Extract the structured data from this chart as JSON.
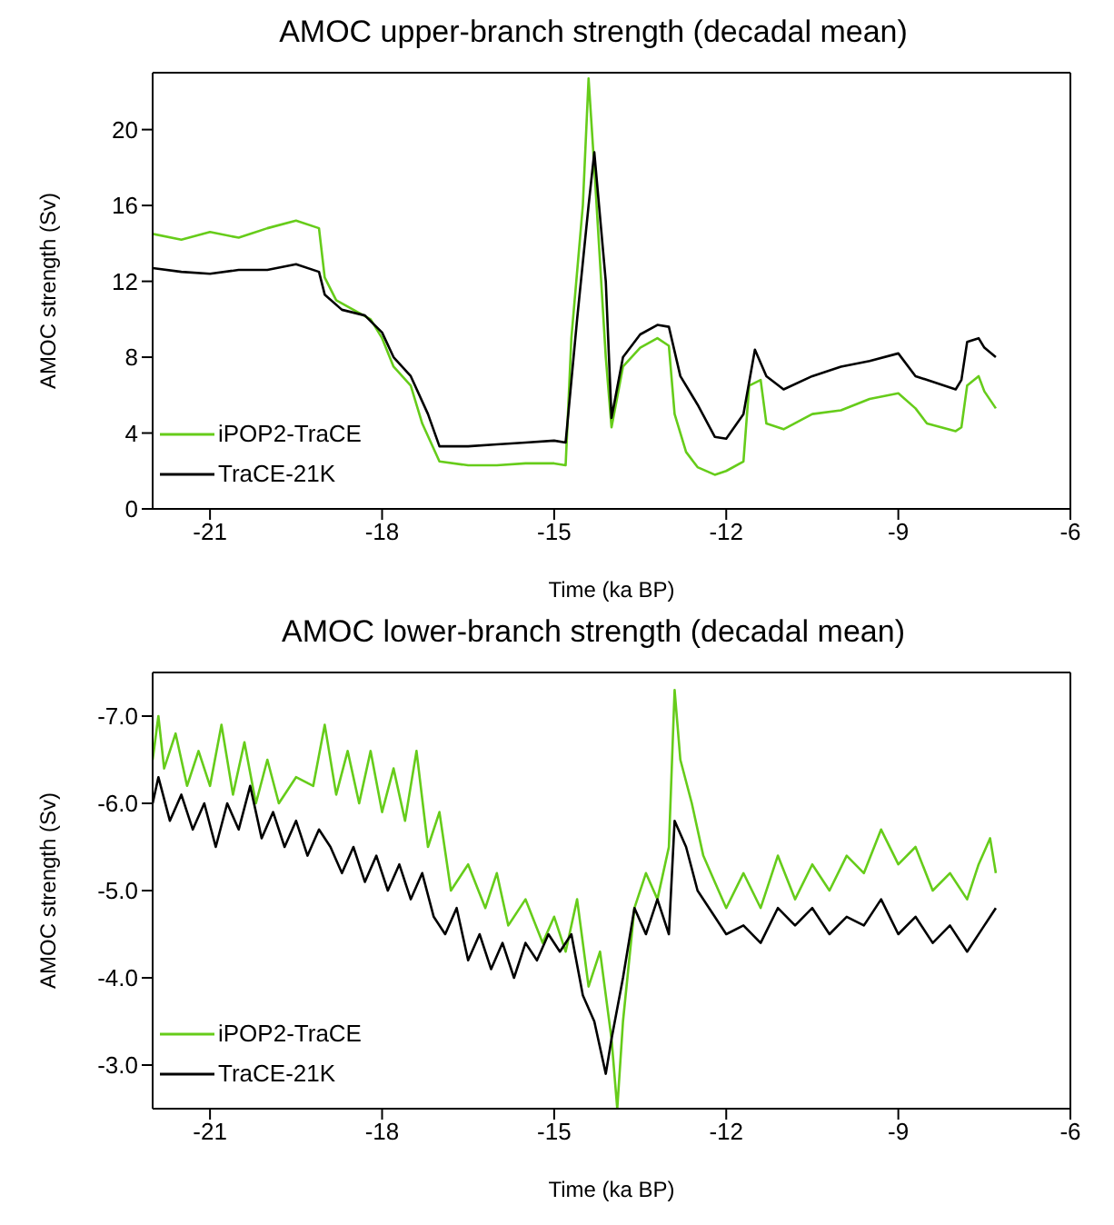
{
  "chart_data": [
    {
      "type": "line",
      "title": "AMOC upper-branch strength (decadal mean)",
      "xlabel": "Time (ka BP)",
      "ylabel": "AMOC strength (Sv)",
      "xlim": [
        -22,
        -6
      ],
      "xticks": [
        -21,
        -18,
        -15,
        -12,
        -9,
        -6
      ],
      "ylim": [
        0,
        23
      ],
      "yticks": [
        0,
        4,
        8,
        12,
        16,
        20
      ],
      "legend": "bottom left",
      "marker": "none",
      "line_style": "solid",
      "series": [
        {
          "name": "iPOP2-TraCE",
          "color": "#66cc1a",
          "x": [
            -22,
            -21.5,
            -21,
            -20.5,
            -20,
            -19.5,
            -19.1,
            -19.0,
            -18.8,
            -18.5,
            -18.2,
            -18.0,
            -17.8,
            -17.5,
            -17.3,
            -17.0,
            -16.5,
            -16,
            -15.5,
            -15,
            -14.8,
            -14.7,
            -14.5,
            -14.4,
            -14.3,
            -14.1,
            -14.0,
            -13.8,
            -13.5,
            -13.2,
            -13.0,
            -12.9,
            -12.7,
            -12.5,
            -12.2,
            -12.0,
            -11.7,
            -11.6,
            -11.4,
            -11.3,
            -11.0,
            -10.5,
            -10.0,
            -9.5,
            -9.0,
            -8.7,
            -8.5,
            -8.0,
            -7.9,
            -7.8,
            -7.6,
            -7.5,
            -7.3
          ],
          "values": [
            14.5,
            14.2,
            14.6,
            14.3,
            14.8,
            15.2,
            14.8,
            12.2,
            11,
            10.5,
            10,
            9,
            7.5,
            6.5,
            4.5,
            2.5,
            2.3,
            2.3,
            2.4,
            2.4,
            2.3,
            9,
            16,
            22.7,
            18,
            8,
            4.3,
            7.5,
            8.5,
            9,
            8.6,
            5,
            3,
            2.2,
            1.8,
            2.0,
            2.5,
            6.5,
            6.8,
            4.5,
            4.2,
            5,
            5.2,
            5.8,
            6.1,
            5.3,
            4.5,
            4.1,
            4.3,
            6.5,
            7.0,
            6.2,
            5.3
          ]
        },
        {
          "name": "TraCE-21K",
          "color": "#000000",
          "x": [
            -22,
            -21.5,
            -21,
            -20.5,
            -20,
            -19.5,
            -19.1,
            -19.0,
            -18.7,
            -18.3,
            -18.0,
            -17.8,
            -17.5,
            -17.2,
            -17.0,
            -16.5,
            -16,
            -15.5,
            -15,
            -14.8,
            -14.6,
            -14.4,
            -14.3,
            -14.1,
            -14.0,
            -13.8,
            -13.5,
            -13.2,
            -13.0,
            -12.8,
            -12.5,
            -12.2,
            -12.0,
            -11.7,
            -11.5,
            -11.3,
            -11.0,
            -10.5,
            -10.0,
            -9.5,
            -9.0,
            -8.7,
            -8.5,
            -8.0,
            -7.9,
            -7.8,
            -7.6,
            -7.5,
            -7.3
          ],
          "values": [
            12.7,
            12.5,
            12.4,
            12.6,
            12.6,
            12.9,
            12.5,
            11.3,
            10.5,
            10.2,
            9.3,
            8,
            7,
            5,
            3.3,
            3.3,
            3.4,
            3.5,
            3.6,
            3.5,
            10,
            16,
            18.8,
            12,
            4.8,
            8,
            9.2,
            9.7,
            9.6,
            7,
            5.5,
            3.8,
            3.7,
            5,
            8.4,
            7,
            6.3,
            7,
            7.5,
            7.8,
            8.2,
            7,
            6.8,
            6.3,
            6.8,
            8.8,
            9,
            8.5,
            8
          ]
        }
      ]
    },
    {
      "type": "line",
      "title": "AMOC lower-branch strength (decadal mean)",
      "xlabel": "Time (ka BP)",
      "ylabel": "AMOC strength (Sv)",
      "xlim": [
        -22,
        -6
      ],
      "xticks": [
        -21,
        -18,
        -15,
        -12,
        -9,
        -6
      ],
      "ylim": [
        -2.5,
        -7.5
      ],
      "yticks": [
        {
          "value": -7,
          "label": "-7.0"
        },
        {
          "value": -6,
          "label": "-6.0"
        },
        {
          "value": -5,
          "label": "-5.0"
        },
        {
          "value": -4,
          "label": "-4.0"
        },
        {
          "value": -3,
          "label": "-3.0"
        }
      ],
      "legend": "bottom left",
      "marker": "none",
      "line_style": "solid",
      "series": [
        {
          "name": "iPOP2-TraCE",
          "color": "#66cc1a",
          "x": [
            -22,
            -21.9,
            -21.8,
            -21.6,
            -21.4,
            -21.2,
            -21.0,
            -20.8,
            -20.6,
            -20.4,
            -20.2,
            -20.0,
            -19.8,
            -19.5,
            -19.2,
            -19.0,
            -18.8,
            -18.6,
            -18.4,
            -18.2,
            -18.0,
            -17.8,
            -17.6,
            -17.4,
            -17.2,
            -17.0,
            -16.8,
            -16.5,
            -16.2,
            -16.0,
            -15.8,
            -15.5,
            -15.2,
            -15.0,
            -14.8,
            -14.6,
            -14.4,
            -14.2,
            -14.0,
            -13.9,
            -13.8,
            -13.6,
            -13.4,
            -13.2,
            -13.0,
            -12.9,
            -12.8,
            -12.6,
            -12.4,
            -12.2,
            -12.0,
            -11.7,
            -11.4,
            -11.1,
            -10.8,
            -10.5,
            -10.2,
            -9.9,
            -9.6,
            -9.3,
            -9.0,
            -8.7,
            -8.4,
            -8.1,
            -7.8,
            -7.6,
            -7.4,
            -7.3
          ],
          "values": [
            -6.5,
            -7.0,
            -6.4,
            -6.8,
            -6.2,
            -6.6,
            -6.2,
            -6.9,
            -6.1,
            -6.7,
            -6.0,
            -6.5,
            -6.0,
            -6.3,
            -6.2,
            -6.9,
            -6.1,
            -6.6,
            -6.0,
            -6.6,
            -5.9,
            -6.4,
            -5.8,
            -6.6,
            -5.5,
            -5.9,
            -5.0,
            -5.3,
            -4.8,
            -5.2,
            -4.6,
            -4.9,
            -4.4,
            -4.7,
            -4.3,
            -4.9,
            -3.9,
            -4.3,
            -3.3,
            -2.5,
            -3.5,
            -4.8,
            -5.2,
            -4.9,
            -5.5,
            -7.3,
            -6.5,
            -6.0,
            -5.4,
            -5.1,
            -4.8,
            -5.2,
            -4.8,
            -5.4,
            -4.9,
            -5.3,
            -5.0,
            -5.4,
            -5.2,
            -5.7,
            -5.3,
            -5.5,
            -5.0,
            -5.2,
            -4.9,
            -5.3,
            -5.6,
            -5.2
          ]
        },
        {
          "name": "TraCE-21K",
          "color": "#000000",
          "x": [
            -22,
            -21.9,
            -21.7,
            -21.5,
            -21.3,
            -21.1,
            -20.9,
            -20.7,
            -20.5,
            -20.3,
            -20.1,
            -19.9,
            -19.7,
            -19.5,
            -19.3,
            -19.1,
            -18.9,
            -18.7,
            -18.5,
            -18.3,
            -18.1,
            -17.9,
            -17.7,
            -17.5,
            -17.3,
            -17.1,
            -16.9,
            -16.7,
            -16.5,
            -16.3,
            -16.1,
            -15.9,
            -15.7,
            -15.5,
            -15.3,
            -15.1,
            -14.9,
            -14.7,
            -14.5,
            -14.3,
            -14.1,
            -14.0,
            -13.8,
            -13.6,
            -13.4,
            -13.2,
            -13.0,
            -12.9,
            -12.7,
            -12.5,
            -12.2,
            -12.0,
            -11.7,
            -11.4,
            -11.1,
            -10.8,
            -10.5,
            -10.2,
            -9.9,
            -9.6,
            -9.3,
            -9.0,
            -8.7,
            -8.4,
            -8.1,
            -7.8,
            -7.5,
            -7.3
          ],
          "values": [
            -6.0,
            -6.3,
            -5.8,
            -6.1,
            -5.7,
            -6.0,
            -5.5,
            -6.0,
            -5.7,
            -6.2,
            -5.6,
            -5.9,
            -5.5,
            -5.8,
            -5.4,
            -5.7,
            -5.5,
            -5.2,
            -5.5,
            -5.1,
            -5.4,
            -5.0,
            -5.3,
            -4.9,
            -5.2,
            -4.7,
            -4.5,
            -4.8,
            -4.2,
            -4.5,
            -4.1,
            -4.4,
            -4.0,
            -4.4,
            -4.2,
            -4.5,
            -4.3,
            -4.5,
            -3.8,
            -3.5,
            -2.9,
            -3.3,
            -4.0,
            -4.8,
            -4.5,
            -4.9,
            -4.5,
            -5.8,
            -5.5,
            -5.0,
            -4.7,
            -4.5,
            -4.6,
            -4.4,
            -4.8,
            -4.6,
            -4.8,
            -4.5,
            -4.7,
            -4.6,
            -4.9,
            -4.5,
            -4.7,
            -4.4,
            -4.6,
            -4.3,
            -4.6,
            -4.8
          ]
        }
      ]
    }
  ]
}
